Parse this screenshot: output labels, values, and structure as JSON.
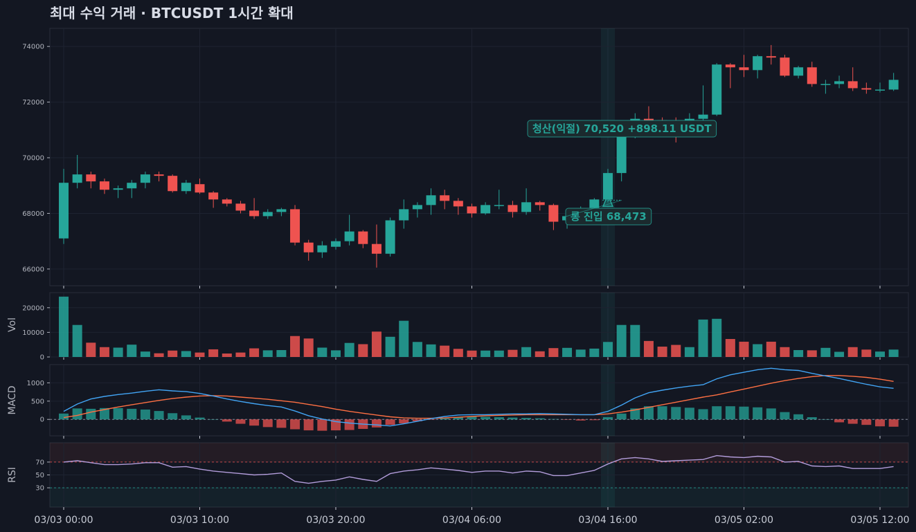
{
  "title": "최대 수익 거래   ·   BTCUSDT 1시간 확대",
  "colors": {
    "bg": "#131722",
    "up": "#26a69a",
    "down": "#ef5350",
    "macd": "#42a5f5",
    "signal": "#ff7043",
    "rsi": "#b39ddb",
    "grid": "#1e2331",
    "highlight": "#26a69a"
  },
  "chart_data": {
    "type": "candlestick",
    "x_ticks": [
      "03/03 00:00",
      "03/03 10:00",
      "03/03 20:00",
      "03/04 06:00",
      "03/04 16:00",
      "03/05 02:00",
      "03/05 12:00"
    ],
    "x_tick_index": [
      0,
      10,
      20,
      30,
      40,
      50,
      60
    ],
    "highlight_index": 40,
    "candles": [
      [
        67100,
        69100,
        66900,
        69600
      ],
      [
        69100,
        69400,
        68900,
        70100
      ],
      [
        69400,
        69150,
        68900,
        69500
      ],
      [
        69150,
        68850,
        68700,
        69250
      ],
      [
        68850,
        68900,
        68550,
        69000
      ],
      [
        68900,
        69100,
        68550,
        69200
      ],
      [
        69100,
        69400,
        68900,
        69500
      ],
      [
        69400,
        69350,
        69150,
        69500
      ],
      [
        69350,
        68800,
        68750,
        69400
      ],
      [
        68800,
        69100,
        68700,
        69200
      ],
      [
        69050,
        68750,
        68700,
        69250
      ],
      [
        68750,
        68500,
        68200,
        68800
      ],
      [
        68500,
        68350,
        68250,
        68550
      ],
      [
        68350,
        68100,
        68000,
        68450
      ],
      [
        68100,
        67900,
        67800,
        68550
      ],
      [
        67900,
        68050,
        67800,
        68150
      ],
      [
        68050,
        68150,
        67900,
        68200
      ],
      [
        68150,
        66950,
        66850,
        68300
      ],
      [
        66950,
        66600,
        66300,
        67050
      ],
      [
        66600,
        66850,
        66400,
        67000
      ],
      [
        66800,
        67000,
        66700,
        67100
      ],
      [
        67000,
        67350,
        66850,
        67950
      ],
      [
        67350,
        66900,
        66750,
        67400
      ],
      [
        66900,
        66550,
        66050,
        67600
      ],
      [
        66550,
        67750,
        66450,
        67850
      ],
      [
        67750,
        68150,
        67450,
        68500
      ],
      [
        68150,
        68300,
        67850,
        68400
      ],
      [
        68300,
        68650,
        67950,
        68900
      ],
      [
        68650,
        68450,
        68150,
        68850
      ],
      [
        68450,
        68250,
        67950,
        68550
      ],
      [
        68250,
        68000,
        67850,
        68350
      ],
      [
        68000,
        68300,
        67950,
        68400
      ],
      [
        68300,
        68300,
        68150,
        68850
      ],
      [
        68300,
        68050,
        67850,
        68450
      ],
      [
        68050,
        68400,
        67950,
        68900
      ],
      [
        68400,
        68300,
        68100,
        68450
      ],
      [
        68300,
        67700,
        67400,
        68350
      ],
      [
        67750,
        67900,
        67450,
        68050
      ],
      [
        67900,
        68100,
        67600,
        68250
      ],
      [
        68200,
        68500,
        68000,
        68550
      ],
      [
        68500,
        69450,
        68400,
        69600
      ],
      [
        69450,
        71100,
        69150,
        71300
      ],
      [
        70900,
        71400,
        70700,
        71600
      ],
      [
        71400,
        71300,
        71050,
        71850
      ],
      [
        71350,
        71250,
        71100,
        71450
      ],
      [
        71300,
        71100,
        70550,
        71450
      ],
      [
        71300,
        71400,
        71100,
        71600
      ],
      [
        71400,
        71550,
        71250,
        72600
      ],
      [
        71550,
        73350,
        71500,
        73400
      ],
      [
        73350,
        73250,
        72500,
        73400
      ],
      [
        73250,
        73150,
        72900,
        73700
      ],
      [
        73150,
        73650,
        72850,
        73700
      ],
      [
        73650,
        73600,
        73350,
        74050
      ],
      [
        73600,
        72950,
        72900,
        73700
      ],
      [
        72950,
        73250,
        72850,
        73300
      ],
      [
        73250,
        72650,
        72550,
        73450
      ],
      [
        72650,
        72650,
        72300,
        72800
      ],
      [
        72650,
        72750,
        72500,
        72950
      ],
      [
        72750,
        72500,
        72400,
        73250
      ],
      [
        72500,
        72450,
        72300,
        72700
      ],
      [
        72450,
        72450,
        72350,
        72700
      ],
      [
        72450,
        72800,
        72400,
        73050
      ]
    ],
    "volume": [
      24500,
      13000,
      5800,
      4000,
      3800,
      5000,
      2200,
      1500,
      2600,
      2400,
      1800,
      3100,
      1400,
      1800,
      3500,
      2700,
      2800,
      8500,
      7500,
      3800,
      2700,
      5700,
      5200,
      10300,
      8200,
      14700,
      6100,
      5100,
      4600,
      3300,
      2600,
      2600,
      2600,
      2900,
      4000,
      2300,
      3600,
      3700,
      3000,
      3400,
      6100,
      13000,
      13000,
      6500,
      4200,
      4900,
      4000,
      15200,
      15500,
      7300,
      6200,
      5200,
      6200,
      4000,
      2800,
      2700,
      3700,
      2100,
      4000,
      3000,
      2200,
      3000
    ],
    "macd_hist": [
      160,
      300,
      290,
      310,
      310,
      290,
      270,
      230,
      170,
      110,
      50,
      0,
      -60,
      -120,
      -170,
      -210,
      -230,
      -270,
      -300,
      -310,
      -300,
      -290,
      -260,
      -220,
      -150,
      -110,
      -50,
      -10,
      30,
      60,
      70,
      70,
      60,
      50,
      40,
      30,
      10,
      -10,
      -30,
      -20,
      60,
      160,
      300,
      360,
      360,
      340,
      320,
      280,
      360,
      360,
      350,
      330,
      300,
      200,
      140,
      60,
      0,
      -80,
      -120,
      -150,
      -190,
      -200
    ],
    "macd_line": [
      220,
      420,
      560,
      630,
      680,
      720,
      770,
      810,
      780,
      760,
      710,
      640,
      560,
      490,
      430,
      380,
      340,
      230,
      100,
      10,
      -60,
      -100,
      -130,
      -150,
      -180,
      -120,
      -50,
      20,
      80,
      120,
      130,
      130,
      140,
      150,
      150,
      160,
      150,
      140,
      130,
      130,
      220,
      390,
      590,
      730,
      800,
      860,
      910,
      950,
      1110,
      1220,
      1290,
      1360,
      1400,
      1360,
      1340,
      1260,
      1190,
      1120,
      1040,
      960,
      890,
      850
    ],
    "macd_signal": [
      50,
      110,
      200,
      270,
      340,
      400,
      460,
      520,
      570,
      610,
      640,
      650,
      640,
      610,
      580,
      550,
      510,
      470,
      410,
      350,
      280,
      220,
      170,
      120,
      70,
      40,
      30,
      30,
      40,
      60,
      80,
      100,
      110,
      120,
      130,
      130,
      130,
      130,
      130,
      130,
      150,
      200,
      260,
      330,
      400,
      470,
      540,
      610,
      670,
      750,
      830,
      910,
      990,
      1060,
      1120,
      1170,
      1200,
      1200,
      1180,
      1150,
      1100,
      1040
    ],
    "rsi": [
      70,
      72,
      69,
      66,
      66,
      67,
      69,
      69,
      62,
      63,
      59,
      56,
      54,
      52,
      50,
      51,
      53,
      40,
      37,
      40,
      42,
      47,
      43,
      40,
      52,
      56,
      58,
      61,
      59,
      57,
      54,
      56,
      56,
      53,
      56,
      55,
      49,
      49,
      53,
      57,
      67,
      75,
      77,
      75,
      71,
      72,
      73,
      74,
      80,
      78,
      77,
      79,
      78,
      70,
      71,
      64,
      63,
      64,
      60,
      60,
      60,
      63
    ],
    "y_main": {
      "ticks": [
        66000,
        68000,
        70000,
        72000,
        74000
      ],
      "range": [
        65400,
        74650
      ]
    },
    "y_vol": {
      "label": "Vol",
      "ticks": [
        0,
        10000,
        20000
      ],
      "range": [
        0,
        25000
      ]
    },
    "y_macd": {
      "label": "MACD",
      "ticks": [
        0,
        500,
        1000
      ],
      "range": [
        -450,
        1500
      ]
    },
    "y_rsi": {
      "label": "RSI",
      "ticks": [
        30,
        50,
        70
      ],
      "range": [
        0,
        100
      ],
      "overbought": 70,
      "oversold": 30
    },
    "annotations": {
      "entry": {
        "text": "롱 진입 68,473",
        "price": 68473,
        "index": 40
      },
      "exit": {
        "text": "청산(익절) 70,520   +898.11 USDT",
        "price": 70520,
        "index": 41
      }
    }
  }
}
